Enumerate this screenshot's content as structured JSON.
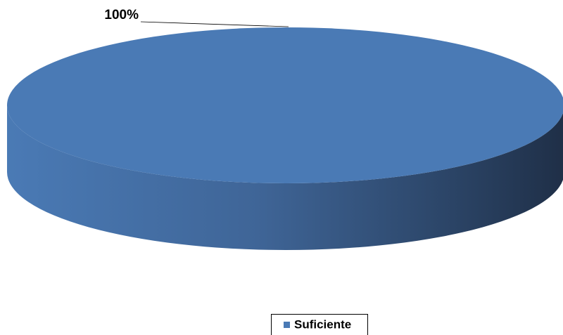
{
  "chart_data": {
    "type": "pie",
    "categories": [
      "Suficiente"
    ],
    "values": [
      100
    ],
    "value_labels": [
      "100%"
    ],
    "colors": [
      "#4a7ab5"
    ],
    "legend": "bottom"
  }
}
